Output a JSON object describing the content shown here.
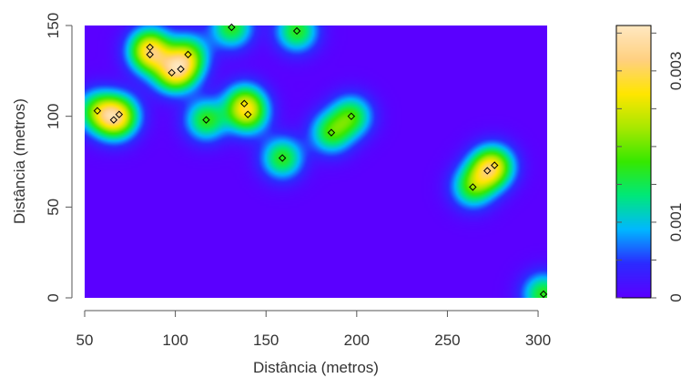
{
  "chart_data": {
    "type": "heatmap",
    "xlabel": "Distância (metros)",
    "ylabel": "Distância (metros)",
    "xlim": [
      50,
      305
    ],
    "ylim": [
      0,
      150
    ],
    "x_ticks": [
      "50",
      "100",
      "150",
      "200",
      "250",
      "300"
    ],
    "y_ticks": [
      "0",
      "50",
      "100",
      "150"
    ],
    "points": [
      {
        "x": 57,
        "y": 103
      },
      {
        "x": 66,
        "y": 98
      },
      {
        "x": 69,
        "y": 101
      },
      {
        "x": 86,
        "y": 138
      },
      {
        "x": 86,
        "y": 134
      },
      {
        "x": 98,
        "y": 124
      },
      {
        "x": 103,
        "y": 126
      },
      {
        "x": 107,
        "y": 134
      },
      {
        "x": 117,
        "y": 98
      },
      {
        "x": 131,
        "y": 149
      },
      {
        "x": 138,
        "y": 107
      },
      {
        "x": 140,
        "y": 101
      },
      {
        "x": 159,
        "y": 77
      },
      {
        "x": 167,
        "y": 147
      },
      {
        "x": 186,
        "y": 91
      },
      {
        "x": 197,
        "y": 100
      },
      {
        "x": 264,
        "y": 61
      },
      {
        "x": 272,
        "y": 70
      },
      {
        "x": 276,
        "y": 73
      },
      {
        "x": 303,
        "y": 2
      }
    ],
    "colorbar": {
      "range": [
        0,
        0.0036
      ],
      "tick_values": [
        0,
        0.001,
        0.003
      ],
      "tick_labels": [
        "0",
        "0.001",
        "0.003"
      ],
      "minor_tick_values": [
        0.0005,
        0.0015,
        0.002,
        0.0025,
        0.0035
      ],
      "colormap": [
        "#5a00ff",
        "#2b2bff",
        "#00b8ff",
        "#00e87a",
        "#36e800",
        "#a8e800",
        "#ffe600",
        "#ffd080",
        "#ffe8c0"
      ]
    }
  }
}
